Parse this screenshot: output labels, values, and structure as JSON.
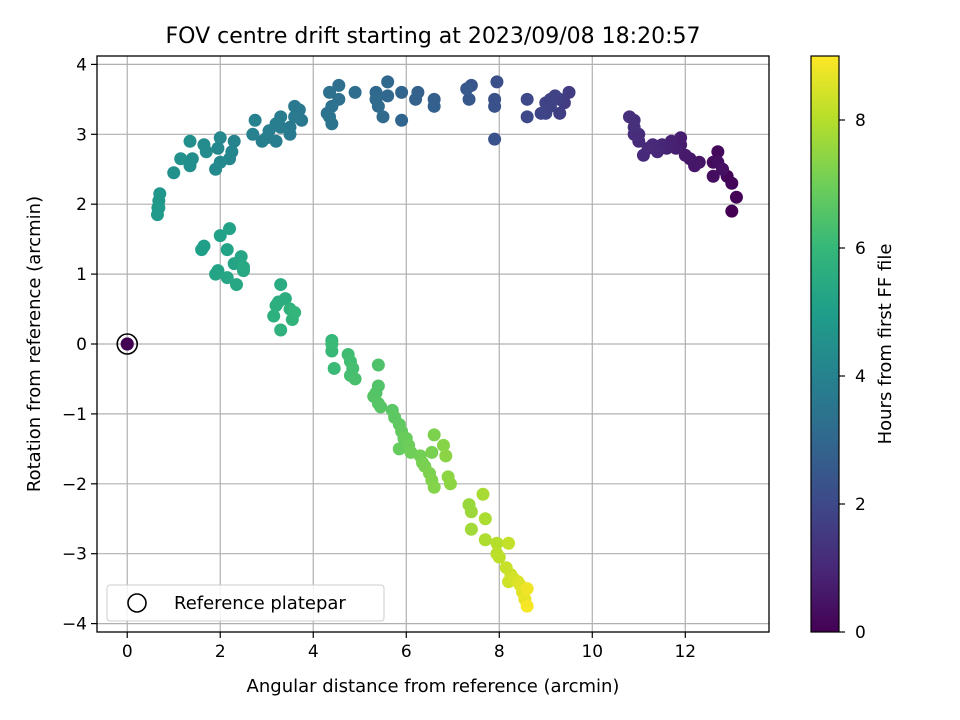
{
  "chart_data": {
    "type": "scatter",
    "title": "FOV centre drift starting at 2023/09/08 18:20:57",
    "xlabel": "Angular distance from reference (arcmin)",
    "ylabel": "Rotation from reference (arcmin)",
    "xlim": [
      -0.65,
      13.8
    ],
    "ylim": [
      -4.12,
      4.12
    ],
    "xticks": [
      0,
      2,
      4,
      6,
      8,
      10,
      12
    ],
    "yticks": [
      -4,
      -3,
      -2,
      -1,
      0,
      1,
      2,
      3,
      4
    ],
    "grid": true,
    "legend": {
      "placement": "lower-left",
      "entries": [
        "Reference platepar"
      ]
    },
    "reference_point": {
      "x": 0,
      "y": 0,
      "label": "Reference platepar"
    },
    "colorbar": {
      "label": "Hours from first FF file",
      "range": [
        0,
        9.0
      ],
      "ticks": [
        0,
        2,
        4,
        6,
        8
      ],
      "colormap": "viridis"
    },
    "colormap_stops": [
      "#440154",
      "#482878",
      "#3e4989",
      "#31688e",
      "#26828e",
      "#1f9e89",
      "#35b779",
      "#6ece58",
      "#b5de2b",
      "#fde725"
    ],
    "series": [
      {
        "x": [
          0,
          13.0,
          13.1,
          12.9,
          13.0,
          12.8,
          12.7,
          12.6,
          12.6,
          12.7,
          12.8,
          12.3,
          12.2,
          12.1,
          12.0,
          11.9,
          11.9,
          11.8,
          11.7,
          11.6,
          11.5,
          11.4,
          11.3,
          11.2,
          11.1,
          11.0,
          11.0,
          10.9,
          10.9,
          10.8,
          10.9,
          9.5,
          9.4,
          9.3,
          9.2,
          9.1,
          9.0,
          9.0,
          8.9,
          9.3,
          9.1,
          8.6,
          8.6,
          7.95,
          7.9,
          7.9,
          7.9,
          7.4,
          7.35,
          7.3,
          6.6,
          6.6,
          6.2,
          6.25,
          5.9,
          5.9,
          5.6,
          5.6,
          5.35,
          5.35,
          5.4,
          5.5,
          4.9,
          4.55,
          4.55,
          4.35,
          4.4,
          4.3,
          4.35,
          4.4,
          3.75,
          3.7,
          3.6,
          3.6,
          3.5,
          3.5,
          3.3,
          3.3,
          3.2,
          3.2,
          3.0,
          3.05,
          2.9,
          2.7,
          2.75,
          2.3,
          2.25,
          2.2,
          2.0,
          1.95,
          2.0,
          1.9,
          1.7,
          1.65,
          1.4,
          1.35,
          1.35,
          1.15,
          1.0,
          0.7,
          0.68,
          0.66,
          0.65,
          0.68,
          1.65,
          1.6,
          2.0,
          2.2,
          2.15,
          2.3,
          2.45,
          2.5,
          1.95,
          1.9,
          2.15,
          2.35,
          2.5,
          3.3,
          3.25,
          3.4,
          3.2,
          3.15,
          3.3,
          3.5,
          3.55,
          3.6,
          4.4,
          4.4,
          4.45,
          4.4,
          4.75,
          4.8,
          4.85,
          4.8,
          4.9,
          5.4,
          5.4,
          5.35,
          5.3,
          5.4,
          5.45,
          5.7,
          5.75,
          5.85,
          5.9,
          5.95,
          5.85,
          6.0,
          6.05,
          6.1,
          6.3,
          6.35,
          6.4,
          6.5,
          6.55,
          6.6,
          6.8,
          6.85,
          6.9,
          6.95,
          6.6,
          6.55,
          7.35,
          7.4,
          7.4,
          7.35,
          7.65,
          7.7,
          7.7,
          7.95,
          7.95,
          8.0,
          8.2,
          8.15,
          8.25,
          8.2,
          8.3,
          8.4,
          8.45,
          8.5,
          8.55,
          8.6,
          8.6
        ],
        "y": [
          0,
          1.9,
          2.1,
          2.4,
          2.3,
          2.5,
          2.75,
          2.6,
          2.4,
          2.6,
          2.5,
          2.6,
          2.55,
          2.65,
          2.7,
          2.85,
          2.95,
          2.8,
          2.9,
          2.8,
          2.85,
          2.75,
          2.85,
          2.8,
          2.7,
          2.9,
          3.0,
          3.0,
          3.1,
          3.25,
          3.2,
          3.6,
          3.45,
          3.5,
          3.55,
          3.4,
          3.3,
          3.45,
          3.3,
          3.3,
          3.5,
          3.5,
          3.25,
          3.75,
          3.5,
          3.4,
          2.93,
          3.7,
          3.5,
          3.65,
          3.5,
          3.4,
          3.5,
          3.6,
          3.2,
          3.6,
          3.75,
          3.55,
          3.6,
          3.5,
          3.4,
          3.25,
          3.6,
          3.7,
          3.5,
          3.6,
          3.4,
          3.3,
          3.25,
          3.15,
          3.2,
          3.35,
          3.4,
          3.25,
          3.1,
          3.0,
          3.25,
          3.1,
          3.15,
          2.9,
          2.95,
          3.05,
          2.9,
          3.0,
          3.2,
          2.9,
          2.75,
          2.65,
          2.95,
          2.8,
          2.6,
          2.5,
          2.75,
          2.85,
          2.65,
          2.55,
          2.9,
          2.65,
          2.45,
          2.15,
          2.05,
          1.95,
          1.85,
          1.95,
          1.4,
          1.35,
          1.55,
          1.65,
          1.35,
          1.15,
          1.25,
          1.05,
          1.05,
          1.0,
          0.95,
          0.85,
          1.1,
          0.85,
          0.6,
          0.65,
          0.55,
          0.4,
          0.2,
          0.5,
          0.35,
          0.45,
          0.05,
          -0.1,
          -0.35,
          0.0,
          -0.15,
          -0.25,
          -0.35,
          -0.45,
          -0.5,
          -0.3,
          -0.6,
          -0.7,
          -0.75,
          -0.85,
          -0.9,
          -0.95,
          -1.05,
          -1.15,
          -1.25,
          -1.35,
          -1.5,
          -1.35,
          -1.45,
          -1.55,
          -1.6,
          -1.7,
          -1.75,
          -1.85,
          -1.95,
          -2.05,
          -1.45,
          -1.6,
          -1.9,
          -2.0,
          -1.3,
          -1.55,
          -2.3,
          -2.4,
          -2.65,
          -2.3,
          -2.15,
          -2.5,
          -2.8,
          -2.85,
          -3.0,
          -3.05,
          -2.85,
          -3.2,
          -3.3,
          -3.4,
          -3.35,
          -3.4,
          -3.45,
          -3.55,
          -3.65,
          -3.5,
          -3.75
        ],
        "hours": [
          0,
          0,
          0.05,
          0.1,
          0.12,
          0.15,
          0.2,
          0.25,
          0.3,
          0.35,
          0.4,
          0.5,
          0.55,
          0.6,
          0.65,
          0.7,
          0.75,
          0.8,
          0.85,
          0.9,
          0.95,
          1.0,
          1.0,
          1.05,
          1.1,
          1.1,
          1.15,
          1.15,
          1.2,
          1.2,
          1.2,
          1.6,
          1.65,
          1.7,
          1.75,
          1.8,
          1.85,
          1.85,
          1.9,
          1.7,
          1.8,
          2.0,
          2.0,
          2.2,
          2.25,
          2.3,
          2.3,
          2.4,
          2.45,
          2.5,
          2.7,
          2.75,
          2.8,
          2.8,
          2.9,
          2.9,
          3.0,
          3.0,
          3.05,
          3.1,
          3.1,
          3.1,
          3.2,
          3.3,
          3.3,
          3.35,
          3.4,
          3.4,
          3.45,
          3.45,
          3.6,
          3.6,
          3.65,
          3.65,
          3.7,
          3.7,
          3.75,
          3.75,
          3.8,
          3.8,
          3.85,
          3.85,
          3.9,
          3.95,
          3.95,
          4.05,
          4.1,
          4.15,
          4.2,
          4.2,
          4.25,
          4.3,
          4.35,
          4.35,
          4.4,
          4.45,
          4.45,
          4.5,
          4.55,
          4.7,
          4.75,
          4.8,
          4.85,
          4.85,
          5.0,
          5.05,
          5.1,
          5.15,
          5.2,
          5.25,
          5.3,
          5.35,
          5.2,
          5.25,
          5.3,
          5.35,
          5.4,
          5.5,
          5.55,
          5.6,
          5.65,
          5.7,
          5.75,
          5.8,
          5.85,
          5.9,
          6.0,
          6.05,
          6.1,
          6.1,
          6.2,
          6.25,
          6.3,
          6.3,
          6.35,
          6.45,
          6.5,
          6.5,
          6.55,
          6.6,
          6.6,
          6.65,
          6.7,
          6.75,
          6.8,
          6.85,
          6.85,
          6.9,
          6.95,
          7.0,
          7.05,
          7.1,
          7.15,
          7.2,
          7.25,
          7.3,
          7.35,
          7.4,
          7.45,
          7.45,
          7.2,
          7.15,
          7.6,
          7.65,
          7.7,
          7.6,
          7.8,
          7.85,
          7.9,
          8.0,
          8.05,
          8.1,
          8.2,
          8.25,
          8.3,
          8.35,
          8.4,
          8.5,
          8.55,
          8.6,
          8.7,
          8.8,
          8.9
        ]
      }
    ]
  }
}
